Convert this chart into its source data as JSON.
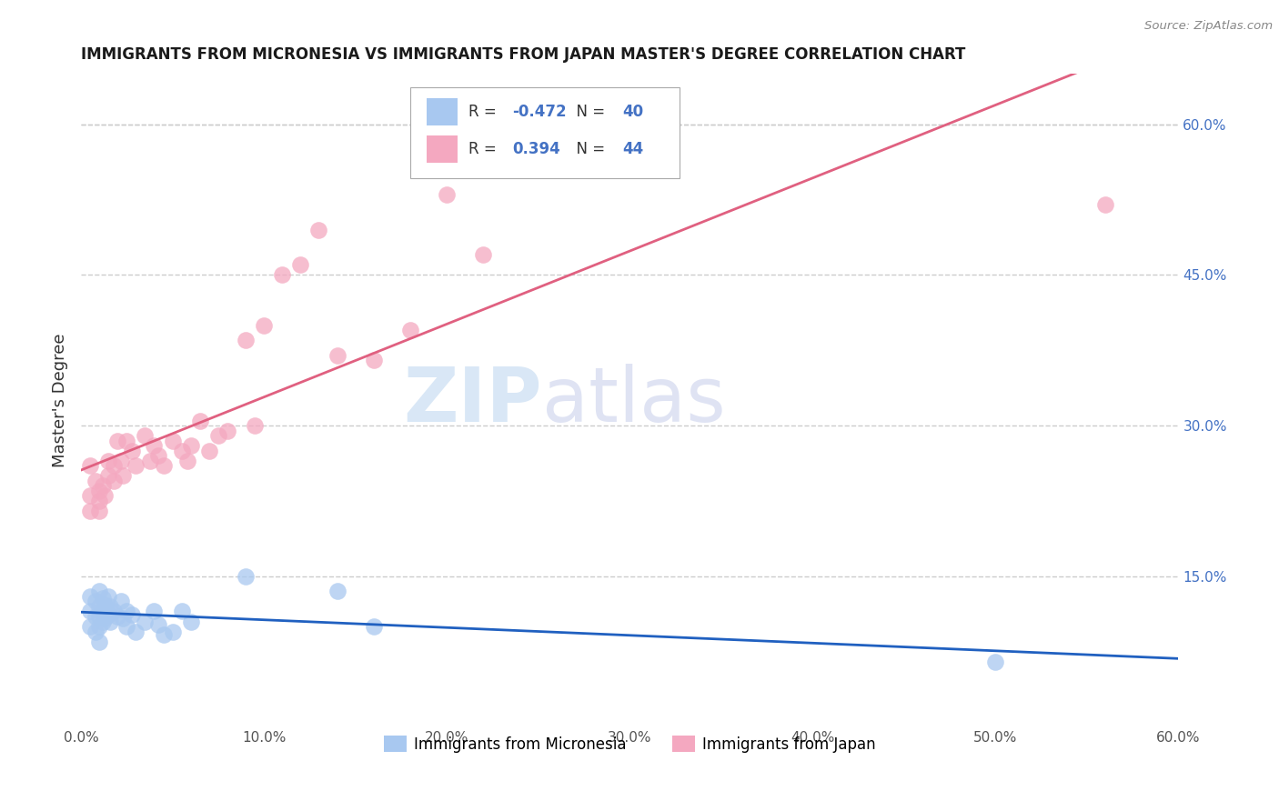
{
  "title": "IMMIGRANTS FROM MICRONESIA VS IMMIGRANTS FROM JAPAN MASTER'S DEGREE CORRELATION CHART",
  "source": "Source: ZipAtlas.com",
  "ylabel": "Master's Degree",
  "legend_label1": "Immigrants from Micronesia",
  "legend_label2": "Immigrants from Japan",
  "R1": -0.472,
  "N1": 40,
  "R2": 0.394,
  "N2": 44,
  "color1": "#A8C8F0",
  "color2": "#F4A8C0",
  "line_color1": "#2060C0",
  "line_color2": "#E06080",
  "xlim": [
    0.0,
    0.6
  ],
  "ylim": [
    0.0,
    0.65
  ],
  "xticks": [
    0.0,
    0.1,
    0.2,
    0.3,
    0.4,
    0.5,
    0.6
  ],
  "yticks_right": [
    0.15,
    0.3,
    0.45,
    0.6
  ],
  "background_color": "#FFFFFF",
  "grid_color": "#CCCCCC",
  "watermark_zip": "ZIP",
  "watermark_atlas": "atlas",
  "micronesia_x": [
    0.005,
    0.005,
    0.005,
    0.008,
    0.008,
    0.008,
    0.01,
    0.01,
    0.01,
    0.01,
    0.01,
    0.012,
    0.012,
    0.012,
    0.013,
    0.013,
    0.014,
    0.015,
    0.015,
    0.016,
    0.016,
    0.018,
    0.02,
    0.022,
    0.023,
    0.025,
    0.025,
    0.028,
    0.03,
    0.035,
    0.04,
    0.042,
    0.045,
    0.05,
    0.055,
    0.06,
    0.09,
    0.14,
    0.16,
    0.5
  ],
  "micronesia_y": [
    0.13,
    0.115,
    0.1,
    0.125,
    0.11,
    0.095,
    0.135,
    0.12,
    0.11,
    0.1,
    0.085,
    0.128,
    0.115,
    0.105,
    0.122,
    0.108,
    0.118,
    0.13,
    0.112,
    0.12,
    0.105,
    0.115,
    0.11,
    0.125,
    0.108,
    0.115,
    0.1,
    0.112,
    0.095,
    0.105,
    0.115,
    0.102,
    0.092,
    0.095,
    0.115,
    0.105,
    0.15,
    0.135,
    0.1,
    0.065
  ],
  "japan_x": [
    0.005,
    0.005,
    0.005,
    0.008,
    0.01,
    0.01,
    0.01,
    0.012,
    0.013,
    0.015,
    0.015,
    0.018,
    0.018,
    0.02,
    0.022,
    0.023,
    0.025,
    0.028,
    0.03,
    0.035,
    0.038,
    0.04,
    0.042,
    0.045,
    0.05,
    0.055,
    0.058,
    0.06,
    0.065,
    0.07,
    0.075,
    0.08,
    0.09,
    0.095,
    0.1,
    0.11,
    0.12,
    0.13,
    0.14,
    0.16,
    0.18,
    0.2,
    0.22,
    0.56
  ],
  "japan_y": [
    0.26,
    0.23,
    0.215,
    0.245,
    0.235,
    0.225,
    0.215,
    0.24,
    0.23,
    0.265,
    0.25,
    0.26,
    0.245,
    0.285,
    0.265,
    0.25,
    0.285,
    0.275,
    0.26,
    0.29,
    0.265,
    0.28,
    0.27,
    0.26,
    0.285,
    0.275,
    0.265,
    0.28,
    0.305,
    0.275,
    0.29,
    0.295,
    0.385,
    0.3,
    0.4,
    0.45,
    0.46,
    0.495,
    0.37,
    0.365,
    0.395,
    0.53,
    0.47,
    0.52
  ]
}
